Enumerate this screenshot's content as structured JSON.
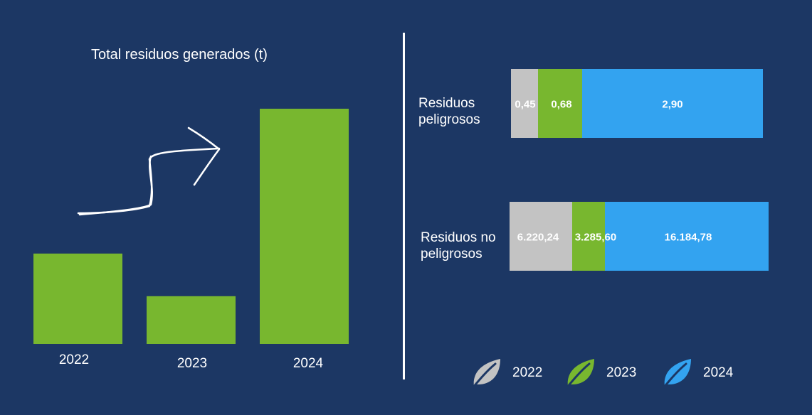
{
  "colors": {
    "background": "#1c3764",
    "y2022": "#c3c3c3",
    "y2023": "#78b72f",
    "y2024": "#33a3f0",
    "text": "#ffffff"
  },
  "chart_data": [
    {
      "type": "bar",
      "title": "Total residuos generados (t)",
      "categories": [
        "2022",
        "2023",
        "2024"
      ],
      "values": [
        6220.69,
        3286.28,
        16187.68
      ],
      "ylim": [
        0,
        17000
      ],
      "annotations": [
        "upward-trend-arrow"
      ],
      "color": "#78b72f"
    },
    {
      "type": "bar",
      "orientation": "horizontal",
      "stacked": true,
      "categories": [
        "Residuos peligrosos",
        "Residuos no peligrosos"
      ],
      "series": [
        {
          "name": "2022",
          "values": [
            0.45,
            6220.24
          ],
          "labels": [
            "0,45",
            "6.220,24"
          ],
          "color": "#c3c3c3"
        },
        {
          "name": "2023",
          "values": [
            0.68,
            3285.6
          ],
          "labels": [
            "0,68",
            "3.285,60"
          ],
          "color": "#78b72f"
        },
        {
          "name": "2024",
          "values": [
            2.9,
            16184.78
          ],
          "labels": [
            "2,90",
            "16.184,78"
          ],
          "color": "#33a3f0"
        }
      ],
      "legend": "bottom"
    }
  ],
  "labels": {
    "left_title": "Total residuos generados (t)",
    "row1": [
      "Residuos",
      "peligrosos"
    ],
    "row2": [
      "Residuos no",
      "peligrosos"
    ]
  },
  "legend": [
    {
      "label": "2022",
      "icon": "leaf-icon",
      "color": "#c3c3c3"
    },
    {
      "label": "2023",
      "icon": "leaf-icon",
      "color": "#78b72f"
    },
    {
      "label": "2024",
      "icon": "leaf-icon",
      "color": "#33a3f0"
    }
  ]
}
